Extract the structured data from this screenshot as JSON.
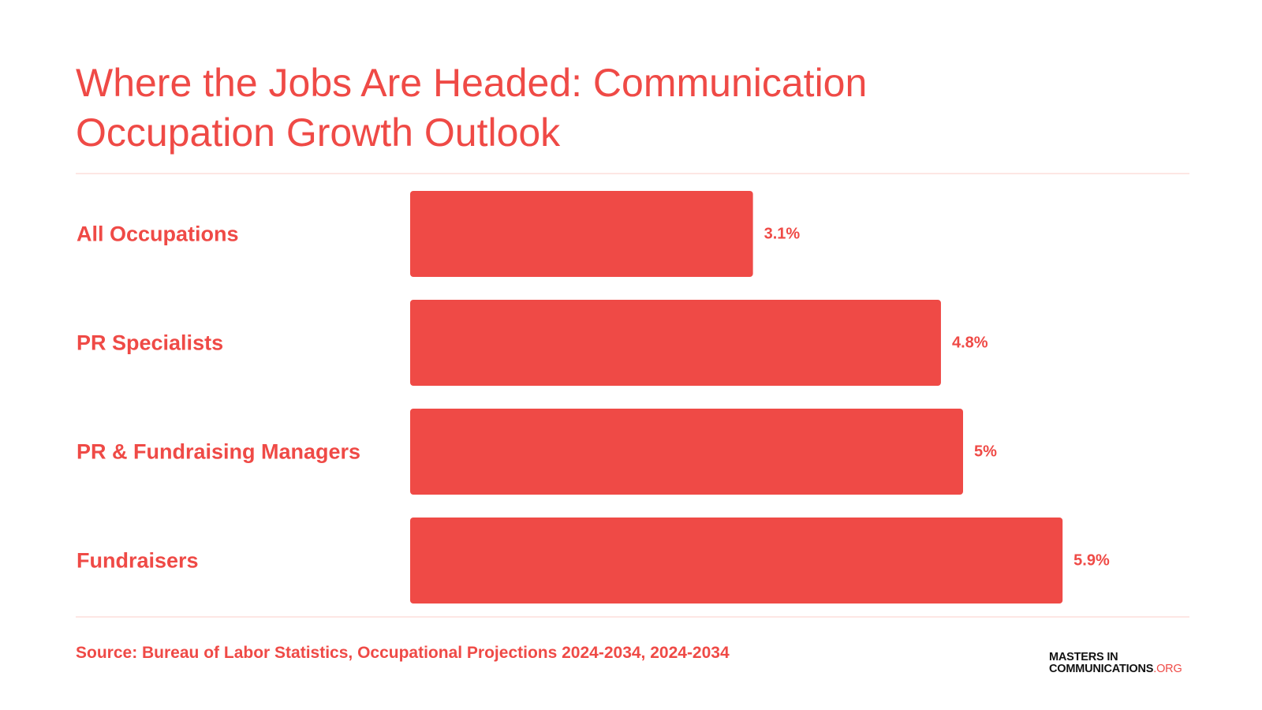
{
  "title": "Where the Jobs Are Headed: Communication Occupation Growth Outlook",
  "source": "Source: Bureau of Labor Statistics, Occupational Projections 2024-2034, 2024-2034",
  "logo": {
    "line1": "MASTERS IN",
    "line2": "COMMUNICATIONS",
    "suffix": ".ORG"
  },
  "colors": {
    "accent": "#ef4a46",
    "rule": "#fde6e4"
  },
  "chart_data": {
    "type": "bar",
    "orientation": "horizontal",
    "title": "Where the Jobs Are Headed: Communication Occupation Growth Outlook",
    "categories": [
      "All Occupations",
      "PR Specialists",
      "PR & Fundraising Managers",
      "Fundraisers"
    ],
    "values": [
      3.1,
      4.8,
      5,
      5.9
    ],
    "value_labels": [
      "3.1%",
      "4.8%",
      "5%",
      "5.9%"
    ],
    "unit": "%",
    "grid": false,
    "legend": "none"
  }
}
